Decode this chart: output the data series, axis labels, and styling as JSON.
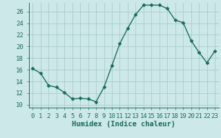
{
  "x": [
    0,
    1,
    2,
    3,
    4,
    5,
    6,
    7,
    8,
    9,
    10,
    11,
    12,
    13,
    14,
    15,
    16,
    17,
    18,
    19,
    20,
    21,
    22,
    23
  ],
  "y": [
    16.2,
    15.4,
    13.3,
    13.0,
    12.1,
    11.0,
    11.1,
    11.0,
    10.5,
    13.0,
    16.7,
    20.5,
    23.1,
    25.5,
    27.1,
    27.1,
    27.1,
    26.5,
    24.5,
    24.1,
    21.0,
    19.0,
    17.2,
    19.2
  ],
  "line_color": "#1a6b5a",
  "marker": "D",
  "markersize": 2.5,
  "linewidth": 1.0,
  "bg_color": "#cce8e8",
  "grid_color_major": "#aacccc",
  "grid_color_minor": "#bbdddd",
  "xlabel": "Humidex (Indice chaleur)",
  "xlim": [
    -0.5,
    23.5
  ],
  "ylim": [
    9.5,
    27.5
  ],
  "yticks": [
    10,
    12,
    14,
    16,
    18,
    20,
    22,
    24,
    26
  ],
  "xticks": [
    0,
    1,
    2,
    3,
    4,
    5,
    6,
    7,
    8,
    9,
    10,
    11,
    12,
    13,
    14,
    15,
    16,
    17,
    18,
    19,
    20,
    21,
    22,
    23
  ],
  "xlabel_fontsize": 7.5,
  "tick_fontsize": 6.5
}
